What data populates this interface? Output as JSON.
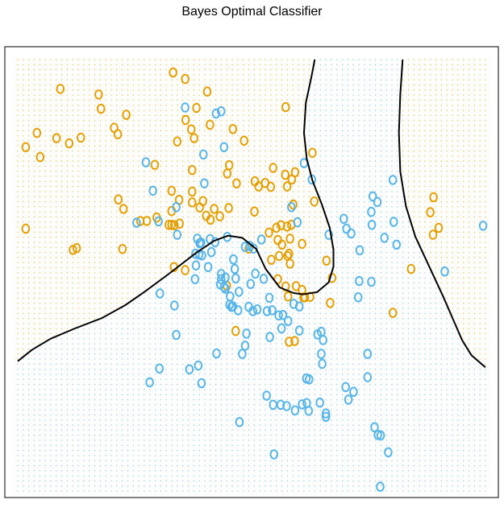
{
  "chart_data": {
    "type": "scatter",
    "title": "Bayes Optimal Classifier",
    "xlabel": "",
    "ylabel": "",
    "xlim": [
      0,
      1
    ],
    "ylim": [
      0,
      1
    ],
    "axes_box": true,
    "tick_labels": false,
    "grid": false,
    "legend": "none",
    "marker": "O",
    "colors": {
      "orange": "#E69F00",
      "blue": "#56B4E9",
      "boundary": "#000000"
    },
    "series": [
      {
        "class": "orange",
        "points": [
          [
            0.332,
            0.97
          ],
          [
            0.091,
            0.932
          ],
          [
            0.173,
            0.919
          ],
          [
            0.358,
            0.955
          ],
          [
            0.405,
            0.926
          ],
          [
            0.178,
            0.886
          ],
          [
            0.573,
            0.89
          ],
          [
            0.382,
            0.888
          ],
          [
            0.232,
            0.872
          ],
          [
            0.359,
            0.86
          ],
          [
            0.411,
            0.849
          ],
          [
            0.46,
            0.839
          ],
          [
            0.371,
            0.838
          ],
          [
            0.206,
            0.842
          ],
          [
            0.484,
            0.812
          ],
          [
            0.041,
            0.83
          ],
          [
            0.083,
            0.818
          ],
          [
            0.11,
            0.806
          ],
          [
            0.135,
            0.819
          ],
          [
            0.017,
            0.797
          ],
          [
            0.214,
            0.827
          ],
          [
            0.341,
            0.81
          ],
          [
            0.377,
            0.818
          ],
          [
            0.048,
            0.774
          ],
          [
            0.63,
            0.784
          ],
          [
            0.293,
            0.756
          ],
          [
            0.373,
            0.744
          ],
          [
            0.452,
            0.755
          ],
          [
            0.448,
            0.736
          ],
          [
            0.572,
            0.733
          ],
          [
            0.546,
            0.749
          ],
          [
            0.468,
            0.713
          ],
          [
            0.507,
            0.718
          ],
          [
            0.529,
            0.714
          ],
          [
            0.593,
            0.739
          ],
          [
            0.541,
            0.705
          ],
          [
            0.373,
            0.694
          ],
          [
            0.329,
            0.696
          ],
          [
            0.373,
            0.669
          ],
          [
            0.396,
            0.672
          ],
          [
            0.345,
            0.675
          ],
          [
            0.889,
            0.681
          ],
          [
            0.634,
            0.671
          ],
          [
            0.515,
            0.706
          ],
          [
            0.576,
            0.706
          ],
          [
            0.586,
            0.722
          ],
          [
            0.389,
            0.657
          ],
          [
            0.215,
            0.676
          ],
          [
            0.226,
            0.654
          ],
          [
            0.329,
            0.649
          ],
          [
            0.42,
            0.654
          ],
          [
            0.451,
            0.656
          ],
          [
            0.506,
            0.648
          ],
          [
            0.589,
            0.664
          ],
          [
            0.882,
            0.646
          ],
          [
            0.412,
            0.629
          ],
          [
            0.403,
            0.638
          ],
          [
            0.432,
            0.637
          ],
          [
            0.276,
            0.626
          ],
          [
            0.262,
            0.626
          ],
          [
            0.297,
            0.634
          ],
          [
            0.323,
            0.617
          ],
          [
            0.335,
            0.616
          ],
          [
            0.329,
            0.617
          ],
          [
            0.346,
            0.62
          ],
          [
            0.017,
            0.608
          ],
          [
            0.553,
            0.61
          ],
          [
            0.576,
            0.613
          ],
          [
            0.563,
            0.616
          ],
          [
            0.585,
            0.617
          ],
          [
            0.537,
            0.599
          ],
          [
            0.582,
            0.585
          ],
          [
            0.556,
            0.582
          ],
          [
            0.9,
            0.61
          ],
          [
            0.888,
            0.594
          ],
          [
            0.565,
            0.571
          ],
          [
            0.608,
            0.573
          ],
          [
            0.494,
            0.562
          ],
          [
            0.577,
            0.545
          ],
          [
            0.58,
            0.55
          ],
          [
            0.224,
            0.561
          ],
          [
            0.126,
            0.563
          ],
          [
            0.118,
            0.559
          ],
          [
            0.559,
            0.545
          ],
          [
            0.542,
            0.536
          ],
          [
            0.582,
            0.527
          ],
          [
            0.66,
            0.534
          ],
          [
            0.841,
            0.515
          ],
          [
            0.334,
            0.519
          ],
          [
            0.358,
            0.512
          ],
          [
            0.556,
            0.491
          ],
          [
            0.672,
            0.494
          ],
          [
            0.447,
            0.476
          ],
          [
            0.573,
            0.474
          ],
          [
            0.595,
            0.475
          ],
          [
            0.608,
            0.466
          ],
          [
            0.578,
            0.451
          ],
          [
            0.611,
            0.449
          ],
          [
            0.625,
            0.45
          ],
          [
            0.668,
            0.436
          ],
          [
            0.614,
            0.449
          ],
          [
            0.802,
            0.413
          ],
          [
            0.466,
            0.371
          ],
          [
            0.58,
            0.346
          ],
          [
            0.592,
            0.348
          ]
        ]
      },
      {
        "class": "blue",
        "points": [
          [
            0.358,
            0.889
          ],
          [
            0.424,
            0.875
          ],
          [
            0.435,
            0.88
          ],
          [
            0.441,
            0.797
          ],
          [
            0.397,
            0.78
          ],
          [
            0.274,
            0.762
          ],
          [
            0.612,
            0.76
          ],
          [
            0.629,
            0.722
          ],
          [
            0.399,
            0.713
          ],
          [
            0.289,
            0.696
          ],
          [
            0.802,
            0.721
          ],
          [
            0.759,
            0.683
          ],
          [
            0.585,
            0.658
          ],
          [
            0.339,
            0.658
          ],
          [
            0.769,
            0.67
          ],
          [
            0.756,
            0.647
          ],
          [
            0.697,
            0.631
          ],
          [
            0.757,
            0.617
          ],
          [
            0.703,
            0.608
          ],
          [
            0.301,
            0.625
          ],
          [
            0.254,
            0.622
          ],
          [
            0.598,
            0.623
          ],
          [
            0.804,
            0.624
          ],
          [
            0.995,
            0.615
          ],
          [
            0.713,
            0.597
          ],
          [
            0.341,
            0.594
          ],
          [
            0.384,
            0.585
          ],
          [
            0.422,
            0.577
          ],
          [
            0.448,
            0.589
          ],
          [
            0.389,
            0.574
          ],
          [
            0.411,
            0.584
          ],
          [
            0.392,
            0.576
          ],
          [
            0.521,
            0.583
          ],
          [
            0.665,
            0.594
          ],
          [
            0.784,
            0.587
          ],
          [
            0.81,
            0.571
          ],
          [
            0.731,
            0.558
          ],
          [
            0.496,
            0.568
          ],
          [
            0.504,
            0.562
          ],
          [
            0.486,
            0.566
          ],
          [
            0.38,
            0.55
          ],
          [
            0.388,
            0.548
          ],
          [
            0.414,
            0.554
          ],
          [
            0.394,
            0.546
          ],
          [
            0.461,
            0.537
          ],
          [
            0.407,
            0.519
          ],
          [
            0.381,
            0.523
          ],
          [
            0.464,
            0.515
          ],
          [
            0.435,
            0.503
          ],
          [
            0.913,
            0.509
          ],
          [
            0.435,
            0.491
          ],
          [
            0.466,
            0.493
          ],
          [
            0.508,
            0.504
          ],
          [
            0.526,
            0.492
          ],
          [
            0.444,
            0.495
          ],
          [
            0.433,
            0.479
          ],
          [
            0.441,
            0.473
          ],
          [
            0.379,
            0.491
          ],
          [
            0.444,
            0.469
          ],
          [
            0.473,
            0.462
          ],
          [
            0.498,
            0.48
          ],
          [
            0.73,
            0.487
          ],
          [
            0.728,
            0.449
          ],
          [
            0.756,
            0.485
          ],
          [
            0.304,
            0.458
          ],
          [
            0.454,
            0.451
          ],
          [
            0.538,
            0.448
          ],
          [
            0.533,
            0.417
          ],
          [
            0.503,
            0.417
          ],
          [
            0.453,
            0.432
          ],
          [
            0.457,
            0.427
          ],
          [
            0.59,
            0.434
          ],
          [
            0.335,
            0.43
          ],
          [
            0.46,
            0.428
          ],
          [
            0.471,
            0.419
          ],
          [
            0.512,
            0.421
          ],
          [
            0.544,
            0.419
          ],
          [
            0.494,
            0.427
          ],
          [
            0.602,
            0.428
          ],
          [
            0.578,
            0.394
          ],
          [
            0.558,
            0.407
          ],
          [
            0.567,
            0.408
          ],
          [
            0.602,
            0.372
          ],
          [
            0.649,
            0.369
          ],
          [
            0.641,
            0.363
          ],
          [
            0.564,
            0.377
          ],
          [
            0.339,
            0.362
          ],
          [
            0.489,
            0.365
          ],
          [
            0.425,
            0.319
          ],
          [
            0.486,
            0.337
          ],
          [
            0.539,
            0.357
          ],
          [
            0.653,
            0.35
          ],
          [
            0.649,
            0.318
          ],
          [
            0.303,
            0.284
          ],
          [
            0.367,
            0.282
          ],
          [
            0.48,
            0.318
          ],
          [
            0.386,
            0.291
          ],
          [
            0.651,
            0.295
          ],
          [
            0.748,
            0.318
          ],
          [
            0.282,
            0.252
          ],
          [
            0.701,
            0.241
          ],
          [
            0.748,
            0.264
          ],
          [
            0.393,
            0.25
          ],
          [
            0.623,
            0.259
          ],
          [
            0.617,
            0.261
          ],
          [
            0.532,
            0.221
          ],
          [
            0.718,
            0.23
          ],
          [
            0.546,
            0.2
          ],
          [
            0.562,
            0.2
          ],
          [
            0.575,
            0.197
          ],
          [
            0.646,
            0.205
          ],
          [
            0.707,
            0.212
          ],
          [
            0.622,
            0.186
          ],
          [
            0.659,
            0.18
          ],
          [
            0.618,
            0.204
          ],
          [
            0.593,
            0.187
          ],
          [
            0.608,
            0.201
          ],
          [
            0.659,
            0.172
          ],
          [
            0.474,
            0.16
          ],
          [
            0.763,
            0.148
          ],
          [
            0.776,
            0.129
          ],
          [
            0.77,
            0.13
          ],
          [
            0.792,
            0.09
          ],
          [
            0.548,
            0.085
          ],
          [
            0.775,
            0.01
          ]
        ]
      }
    ],
    "decision_boundary": [
      {
        "name": "",
        "points": [
          [
            0.0,
            0.301
          ],
          [
            0.03,
            0.327
          ],
          [
            0.07,
            0.353
          ],
          [
            0.12,
            0.376
          ],
          [
            0.18,
            0.401
          ],
          [
            0.23,
            0.431
          ],
          [
            0.27,
            0.461
          ],
          [
            0.32,
            0.501
          ],
          [
            0.38,
            0.551
          ],
          [
            0.42,
            0.58
          ],
          [
            0.45,
            0.592
          ],
          [
            0.48,
            0.587
          ],
          [
            0.51,
            0.561
          ],
          [
            0.53,
            0.515
          ],
          [
            0.56,
            0.472
          ],
          [
            0.59,
            0.459
          ],
          [
            0.61,
            0.456
          ],
          [
            0.64,
            0.461
          ],
          [
            0.665,
            0.484
          ],
          [
            0.675,
            0.52
          ],
          [
            0.675,
            0.56
          ],
          [
            0.667,
            0.61
          ],
          [
            0.65,
            0.665
          ],
          [
            0.63,
            0.72
          ],
          [
            0.618,
            0.77
          ],
          [
            0.612,
            0.83
          ],
          [
            0.616,
            0.9
          ],
          [
            0.628,
            0.96
          ],
          [
            0.635,
            1.0
          ]
        ]
      },
      {
        "name": "",
        "points": [
          [
            0.823,
            1.0
          ],
          [
            0.818,
            0.92
          ],
          [
            0.815,
            0.83
          ],
          [
            0.818,
            0.74
          ],
          [
            0.83,
            0.66
          ],
          [
            0.85,
            0.59
          ],
          [
            0.88,
            0.52
          ],
          [
            0.91,
            0.45
          ],
          [
            0.93,
            0.4
          ],
          [
            0.95,
            0.35
          ],
          [
            0.97,
            0.315
          ],
          [
            1.0,
            0.287
          ]
        ]
      }
    ]
  }
}
